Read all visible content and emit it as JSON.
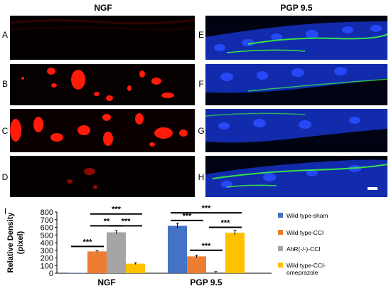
{
  "figure": {
    "panel_letters": [
      "A",
      "B",
      "C",
      "D",
      "E",
      "F",
      "G",
      "H"
    ],
    "column_titles": [
      "NGF",
      "PGP 9.5"
    ],
    "chart_label": "I"
  },
  "colors": {
    "ngf_stain": "#ff1a0a",
    "nuclei_stain": "#1e3cff",
    "pgp_stain": "#35e04a"
  },
  "chart_data": {
    "type": "bar",
    "categories": [
      "NGF",
      "PGP 9.5"
    ],
    "series": [
      {
        "name": "Wild type-sham",
        "color": "#4472c4",
        "values": [
          5,
          620
        ],
        "errors": [
          0,
          35
        ]
      },
      {
        "name": "Wild type-CCI",
        "color": "#ed7d31",
        "values": [
          285,
          220
        ],
        "errors": [
          10,
          15
        ]
      },
      {
        "name": "AhR(-/-)-CCI",
        "color": "#a5a5a5",
        "values": [
          535,
          15
        ],
        "errors": [
          20,
          5
        ]
      },
      {
        "name": "Wild type-CCI-omeprazole",
        "color": "#ffc000",
        "values": [
          125,
          530
        ],
        "errors": [
          10,
          30
        ]
      }
    ],
    "legend_lines": [
      [
        "Wild type-sham"
      ],
      [
        "Wild type-CCI"
      ],
      [
        "AhR(-/-)-CCI"
      ],
      [
        "Wild type-CCI-",
        "omeprazole"
      ]
    ],
    "ylabel_lines": [
      "Relative Density",
      "(pixel)"
    ],
    "yticks": [
      0,
      100,
      200,
      300,
      400,
      500,
      600,
      700,
      800
    ],
    "ylim": [
      0,
      800
    ],
    "significance": [
      {
        "group": 0,
        "from": 0,
        "to": 1,
        "level": 350,
        "label": "***"
      },
      {
        "group": 0,
        "from": 1,
        "to": 2,
        "level": 620,
        "label": "**"
      },
      {
        "group": 0,
        "from": 2,
        "to": 3,
        "level": 620,
        "label": "***"
      },
      {
        "group": 0,
        "from": 1,
        "to": 3,
        "level": 775,
        "label": "***"
      },
      {
        "group": 1,
        "from": 0,
        "to": 1,
        "level": 690,
        "label": "***"
      },
      {
        "group": 1,
        "from": 1,
        "to": 2,
        "level": 300,
        "label": "***"
      },
      {
        "group": 1,
        "from": 2,
        "to": 3,
        "level": 600,
        "label": "***"
      },
      {
        "group": 1,
        "from": 0,
        "to": 3,
        "level": 790,
        "label": "***"
      }
    ],
    "legend_position": "right",
    "grid": false
  }
}
